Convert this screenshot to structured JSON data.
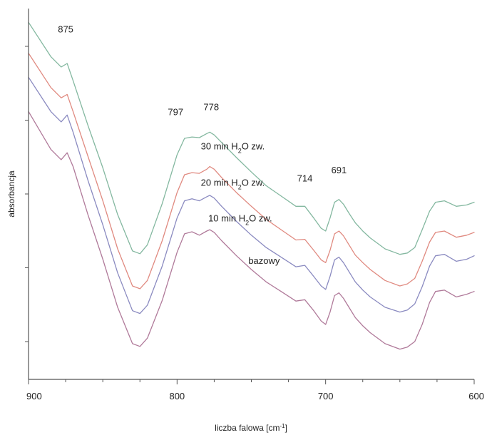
{
  "chart_data": {
    "type": "line",
    "xlabel_main": "liczba falowa [cm",
    "xlabel_sup": "-1",
    "xlabel_tail": "]",
    "ylabel": "absorbancja",
    "xlim": [
      900,
      600
    ],
    "x_ticks": [
      "900",
      "800",
      "700",
      "600"
    ],
    "x_minor_step": 25,
    "y_ticks_count": 5,
    "y_ticks_numeric": false,
    "series": [
      {
        "name": "bazowy",
        "color": "#b07a9a",
        "x": [
          900,
          885,
          878,
          874,
          870,
          860,
          850,
          840,
          830,
          825,
          820,
          810,
          800,
          795,
          790,
          785,
          780,
          778,
          775,
          770,
          760,
          750,
          740,
          730,
          720,
          714,
          708,
          703,
          700,
          697,
          694,
          691,
          688,
          684,
          680,
          675,
          670,
          660,
          650,
          645,
          640,
          635,
          630,
          626,
          620,
          612,
          605,
          600
        ],
        "y": [
          3.6,
          3.05,
          2.9,
          3.0,
          2.8,
          2.1,
          1.45,
          0.75,
          0.22,
          0.18,
          0.3,
          0.85,
          1.55,
          1.82,
          1.85,
          1.8,
          1.86,
          1.88,
          1.84,
          1.72,
          1.5,
          1.3,
          1.12,
          0.98,
          0.84,
          0.86,
          0.7,
          0.55,
          0.5,
          0.68,
          0.92,
          0.96,
          0.88,
          0.74,
          0.6,
          0.48,
          0.38,
          0.22,
          0.14,
          0.17,
          0.25,
          0.5,
          0.82,
          0.98,
          1.0,
          0.9,
          0.94,
          0.98
        ]
      },
      {
        "name": "10 min H2O zw.",
        "color": "#8a8ac0",
        "x": [
          900,
          885,
          878,
          874,
          870,
          860,
          850,
          840,
          830,
          825,
          820,
          810,
          800,
          795,
          790,
          785,
          780,
          778,
          775,
          770,
          760,
          750,
          740,
          730,
          720,
          714,
          708,
          703,
          700,
          697,
          694,
          691,
          688,
          684,
          680,
          675,
          670,
          660,
          650,
          645,
          640,
          635,
          630,
          626,
          620,
          612,
          605,
          600
        ],
        "y": [
          4.1,
          3.6,
          3.45,
          3.55,
          3.3,
          2.6,
          1.95,
          1.25,
          0.7,
          0.66,
          0.78,
          1.35,
          2.05,
          2.3,
          2.33,
          2.3,
          2.36,
          2.38,
          2.34,
          2.22,
          2.0,
          1.8,
          1.62,
          1.48,
          1.34,
          1.36,
          1.2,
          1.06,
          1.01,
          1.2,
          1.44,
          1.48,
          1.4,
          1.26,
          1.12,
          1.0,
          0.9,
          0.75,
          0.68,
          0.71,
          0.8,
          1.05,
          1.35,
          1.5,
          1.52,
          1.42,
          1.45,
          1.5
        ]
      },
      {
        "name": "20 min H2O zw.",
        "color": "#e08a80",
        "x": [
          900,
          885,
          878,
          874,
          870,
          860,
          850,
          840,
          830,
          825,
          820,
          810,
          800,
          795,
          790,
          785,
          780,
          778,
          775,
          770,
          760,
          750,
          740,
          730,
          720,
          714,
          708,
          703,
          700,
          697,
          694,
          691,
          688,
          684,
          680,
          675,
          670,
          660,
          650,
          645,
          640,
          635,
          630,
          626,
          620,
          612,
          605,
          600
        ],
        "y": [
          4.45,
          3.95,
          3.8,
          3.85,
          3.6,
          2.95,
          2.3,
          1.6,
          1.06,
          1.02,
          1.14,
          1.72,
          2.42,
          2.68,
          2.71,
          2.7,
          2.76,
          2.8,
          2.76,
          2.64,
          2.42,
          2.22,
          2.03,
          1.88,
          1.73,
          1.74,
          1.58,
          1.44,
          1.4,
          1.58,
          1.82,
          1.86,
          1.79,
          1.65,
          1.51,
          1.4,
          1.3,
          1.14,
          1.06,
          1.09,
          1.17,
          1.42,
          1.7,
          1.84,
          1.86,
          1.77,
          1.8,
          1.84
        ]
      },
      {
        "name": "30 min H2O zw.",
        "color": "#84b8a0",
        "x": [
          900,
          885,
          878,
          874,
          870,
          860,
          850,
          840,
          830,
          825,
          820,
          810,
          800,
          795,
          790,
          785,
          780,
          778,
          775,
          770,
          760,
          750,
          740,
          730,
          720,
          714,
          708,
          703,
          700,
          697,
          694,
          691,
          688,
          684,
          680,
          675,
          670,
          660,
          650,
          645,
          640,
          635,
          630,
          626,
          620,
          612,
          605,
          600
        ],
        "y": [
          4.9,
          4.4,
          4.25,
          4.3,
          4.05,
          3.4,
          2.78,
          2.1,
          1.57,
          1.53,
          1.66,
          2.26,
          2.97,
          3.21,
          3.23,
          3.22,
          3.28,
          3.3,
          3.26,
          3.15,
          2.93,
          2.72,
          2.52,
          2.37,
          2.22,
          2.22,
          2.05,
          1.9,
          1.86,
          2.05,
          2.28,
          2.32,
          2.25,
          2.11,
          1.98,
          1.86,
          1.76,
          1.6,
          1.52,
          1.54,
          1.62,
          1.88,
          2.15,
          2.28,
          2.3,
          2.22,
          2.24,
          2.28
        ]
      }
    ],
    "peak_labels": [
      {
        "text": "875",
        "x": 875,
        "y": 4.75
      },
      {
        "text": "797",
        "x": 801,
        "y": 3.55
      },
      {
        "text": "778",
        "x": 777,
        "y": 3.62
      },
      {
        "text": "714",
        "x": 714,
        "y": 2.58
      },
      {
        "text": "691",
        "x": 691,
        "y": 2.7
      }
    ],
    "series_labels": [
      {
        "main": "30 min H",
        "sub": "2",
        "tail": "O zw.",
        "x": 784,
        "y": 3.05
      },
      {
        "main": "20 min H",
        "sub": "2",
        "tail": "O zw.",
        "x": 784,
        "y": 2.52
      },
      {
        "main": "10 min H",
        "sub": "2",
        "tail": "O zw.",
        "x": 779,
        "y": 2.0
      },
      {
        "main": "bazowy",
        "sub": "",
        "tail": "",
        "x": 752,
        "y": 1.38
      }
    ],
    "ylim": [
      -0.3,
      5.1
    ]
  }
}
